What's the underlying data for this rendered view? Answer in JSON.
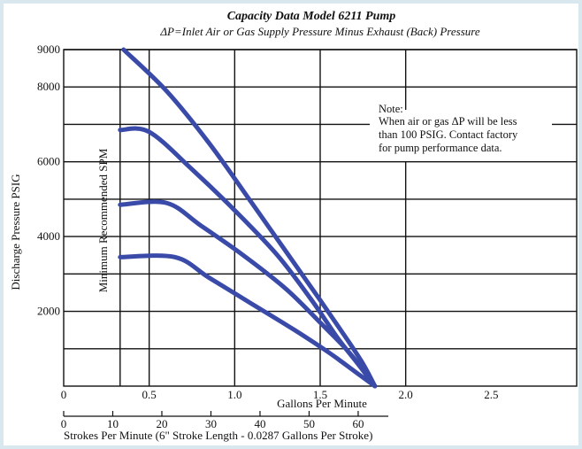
{
  "chart_data": {
    "type": "line",
    "title": "Capacity Data Model 6211 Pump",
    "subtitle": {
      "delta_symbol": "Δ",
      "p_symbol": "P",
      "rest": "=Inlet Air or Gas Supply Pressure Minus Exhaust (Back) Pressure"
    },
    "xlabel": "Gallons Per Minute",
    "ylabel": "Discharge Pressure PSIG",
    "xlim": [
      0,
      3.0
    ],
    "ylim": [
      0,
      9000
    ],
    "grid": true,
    "x_ticks": [
      "0",
      "0.5",
      "1.0",
      "1.5",
      "2.0",
      "2.5"
    ],
    "x_tick_values": [
      0,
      0.5,
      1.0,
      1.5,
      2.0,
      2.5
    ],
    "y_ticks": [
      "9000",
      "8000",
      "6000",
      "4000",
      "2000"
    ],
    "y_tick_values": [
      9000,
      8000,
      6000,
      4000,
      2000
    ],
    "y_grid_values": [
      1000,
      2000,
      3000,
      4000,
      5000,
      6000,
      7000,
      8000,
      9000
    ],
    "x_grid_values": [
      0.33,
      0.5,
      1.0,
      1.5,
      2.0
    ],
    "secondary_x": {
      "label": "Strokes Per Minute (6\" Stroke Length - 0.0287 Gallons Per Stroke)",
      "ticks": [
        "0",
        "10",
        "20",
        "30",
        "40",
        "50",
        "60"
      ],
      "tick_values": [
        0,
        10,
        20,
        30,
        40,
        50,
        60
      ]
    },
    "vertical_annotation": "Minimum Recommended SPM",
    "note": {
      "heading": "Note:",
      "lines": [
        "When air or gas ΔP will be less",
        "than 100 PSIG. Contact factory",
        "for pump performance data."
      ]
    },
    "series": [
      {
        "x": [
          0.35,
          0.6,
          0.85,
          1.1,
          1.3,
          1.5,
          1.65,
          1.75,
          1.82
        ],
        "y": [
          9000,
          7900,
          6500,
          4900,
          3600,
          2300,
          1300,
          600,
          0
        ]
      },
      {
        "x": [
          0.33,
          0.5,
          0.75,
          1.0,
          1.25,
          1.45,
          1.6,
          1.72,
          1.82
        ],
        "y": [
          6850,
          6800,
          5800,
          4700,
          3500,
          2300,
          1300,
          600,
          0
        ]
      },
      {
        "x": [
          0.33,
          0.6,
          0.8,
          1.05,
          1.3,
          1.5,
          1.65,
          1.75,
          1.82
        ],
        "y": [
          4850,
          4900,
          4300,
          3500,
          2600,
          1700,
          1000,
          450,
          0
        ]
      },
      {
        "x": [
          0.33,
          0.65,
          0.85,
          1.1,
          1.35,
          1.55,
          1.7,
          1.82
        ],
        "y": [
          3450,
          3450,
          2900,
          2200,
          1500,
          900,
          400,
          0
        ]
      }
    ]
  }
}
